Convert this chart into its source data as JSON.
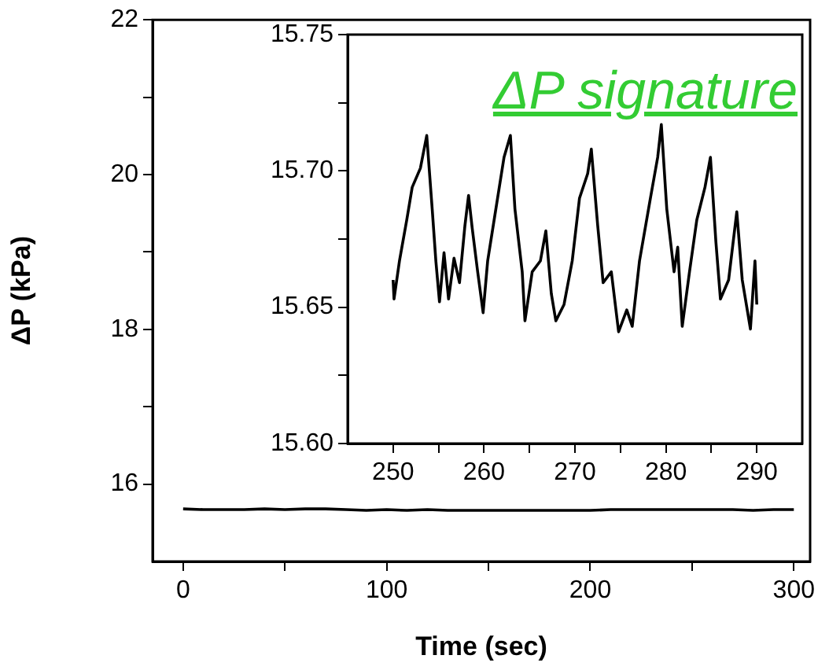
{
  "chart_data": [
    {
      "type": "line",
      "xlabel": "Time (sec)",
      "ylabel": "ΔP (kPa)",
      "xlim": [
        -15,
        308
      ],
      "ylim": [
        15,
        22
      ],
      "xticks": [
        0,
        {
          "value": 50,
          "label": null
        },
        100,
        {
          "value": 150,
          "label": null
        },
        200,
        {
          "value": 250,
          "label": null
        },
        300
      ],
      "yticks": [
        16,
        {
          "value": 17,
          "label": null
        },
        18,
        {
          "value": 19,
          "label": null
        },
        20,
        {
          "value": 21,
          "label": null
        },
        22
      ],
      "grid": false,
      "legend": false,
      "marker": "none",
      "line_style": "solid",
      "series": [
        {
          "color": "#000000",
          "x": [
            0,
            10,
            20,
            30,
            40,
            50,
            60,
            70,
            80,
            90,
            100,
            110,
            120,
            130,
            140,
            150,
            160,
            170,
            180,
            190,
            200,
            210,
            220,
            230,
            240,
            250,
            260,
            270,
            280,
            290,
            300
          ],
          "values": [
            15.68,
            15.67,
            15.67,
            15.67,
            15.68,
            15.67,
            15.68,
            15.68,
            15.67,
            15.66,
            15.67,
            15.66,
            15.67,
            15.66,
            15.66,
            15.66,
            15.66,
            15.66,
            15.66,
            15.66,
            15.66,
            15.67,
            15.67,
            15.67,
            15.67,
            15.67,
            15.67,
            15.67,
            15.66,
            15.67,
            15.67
          ]
        }
      ]
    },
    {
      "type": "line",
      "annotations": [
        "ΔP signature"
      ],
      "xlim": [
        245,
        295
      ],
      "ylim": [
        15.6,
        15.75
      ],
      "xticks": [
        250,
        {
          "value": 255,
          "label": null
        },
        260,
        {
          "value": 265,
          "label": null
        },
        270,
        {
          "value": 275,
          "label": null
        },
        280,
        {
          "value": 285,
          "label": null
        },
        290
      ],
      "yticks": [
        {
          "value": 15.6,
          "label": "15.60"
        },
        {
          "value": 15.625,
          "label": null
        },
        {
          "value": 15.65,
          "label": "15.65"
        },
        {
          "value": 15.675,
          "label": null
        },
        {
          "value": 15.7,
          "label": "15.70"
        },
        {
          "value": 15.725,
          "label": null
        },
        {
          "value": 15.75,
          "label": "15.75"
        }
      ],
      "grid": false,
      "legend": false,
      "marker": "none",
      "line_style": "solid",
      "series": [
        {
          "color": "#000000",
          "x": [
            250.0,
            250.1,
            250.7,
            251.5,
            252.1,
            253.0,
            253.7,
            254.3,
            254.7,
            255.1,
            255.6,
            256.1,
            256.7,
            257.3,
            257.9,
            258.3,
            258.7,
            259.3,
            259.9,
            260.4,
            261.3,
            262.2,
            262.9,
            263.4,
            264.2,
            264.5,
            265.3,
            266.2,
            266.8,
            267.4,
            267.9,
            268.8,
            269.7,
            270.5,
            271.4,
            271.8,
            272.5,
            273.1,
            274.0,
            274.8,
            275.7,
            276.3,
            277.1,
            278.3,
            279.1,
            279.5,
            280.1,
            280.9,
            281.3,
            281.8,
            282.6,
            283.4,
            284.3,
            284.9,
            285.5,
            286.0,
            286.9,
            287.8,
            288.4,
            289.3,
            289.8,
            290.0
          ],
          "values": [
            15.66,
            15.653,
            15.667,
            15.682,
            15.694,
            15.701,
            15.713,
            15.686,
            15.667,
            15.652,
            15.67,
            15.653,
            15.668,
            15.659,
            15.68,
            15.691,
            15.679,
            15.663,
            15.648,
            15.667,
            15.686,
            15.705,
            15.713,
            15.686,
            15.663,
            15.645,
            15.663,
            15.667,
            15.678,
            15.655,
            15.645,
            15.651,
            15.667,
            15.69,
            15.699,
            15.708,
            15.68,
            15.659,
            15.663,
            15.641,
            15.649,
            15.643,
            15.667,
            15.69,
            15.705,
            15.717,
            15.686,
            15.663,
            15.672,
            15.643,
            15.663,
            15.682,
            15.694,
            15.705,
            15.674,
            15.653,
            15.66,
            15.685,
            15.66,
            15.642,
            15.667,
            15.651
          ]
        }
      ]
    }
  ]
}
